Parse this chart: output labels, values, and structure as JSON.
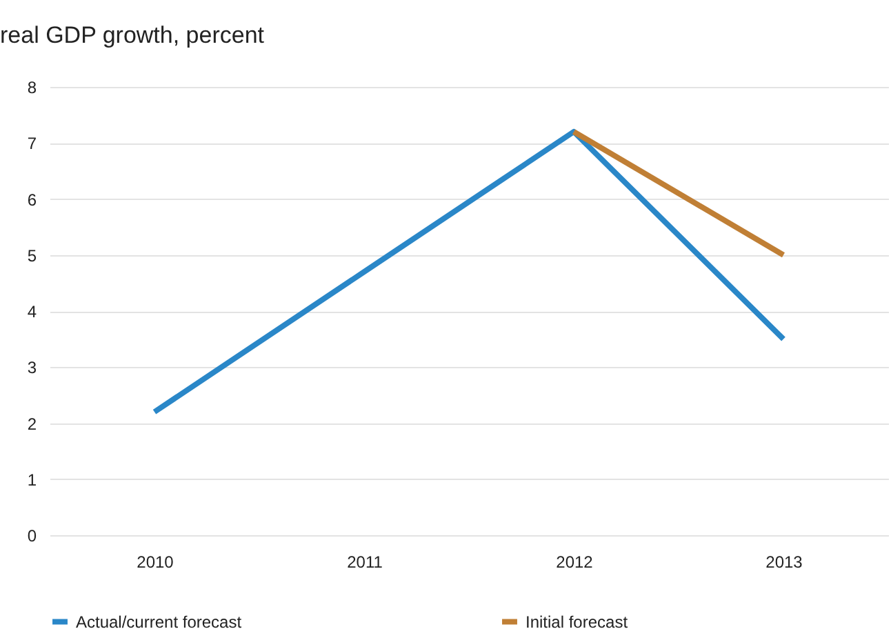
{
  "chart_data": {
    "type": "line",
    "title": "real GDP growth, percent",
    "categories": [
      "2010",
      "2011",
      "2012",
      "2013"
    ],
    "series": [
      {
        "name": "Actual/current forecast",
        "color": "#2a87c8",
        "values": [
          2.2,
          4.7,
          7.2,
          3.5
        ]
      },
      {
        "name": "Initial forecast",
        "color": "#c07f35",
        "values": [
          null,
          null,
          7.2,
          5.0
        ]
      }
    ],
    "ylim": [
      0,
      8
    ],
    "yticks": [
      0,
      1,
      2,
      3,
      4,
      5,
      6,
      7,
      8
    ],
    "grid": "y",
    "legend": "bottom"
  }
}
